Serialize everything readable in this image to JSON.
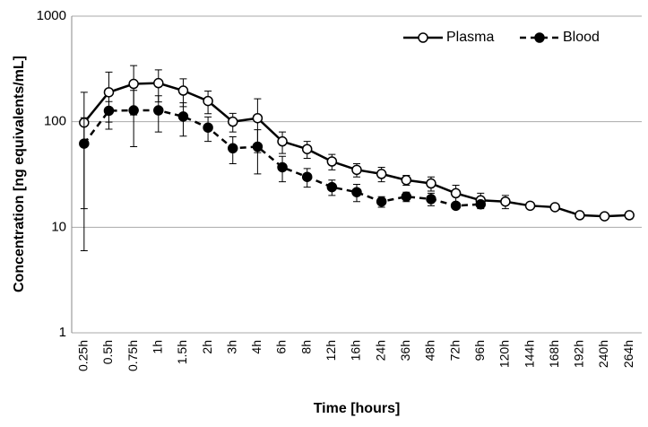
{
  "chart_data": {
    "type": "line",
    "x_label": "Time [hours]",
    "y_label": "Concentration [ng equivalents/mL]",
    "categories": [
      "0.25h",
      "0.5h",
      "0.75h",
      "1h",
      "1.5h",
      "2h",
      "3h",
      "4h",
      "6h",
      "8h",
      "12h",
      "16h",
      "24h",
      "36h",
      "48h",
      "72h",
      "96h",
      "120h",
      "144h",
      "168h",
      "192h",
      "240h",
      "264h"
    ],
    "series": [
      {
        "name": "Plasma",
        "color": "#000000",
        "marker": "open",
        "dash": false,
        "values": [
          98,
          190,
          228,
          232,
          197,
          157,
          100,
          108,
          65,
          55,
          42,
          35,
          32,
          28,
          26,
          21,
          18,
          17.5,
          16,
          15.5,
          13,
          12.7,
          13
        ],
        "errors": [
          92,
          105,
          112,
          78,
          58,
          38,
          20,
          57,
          15,
          10,
          7,
          5,
          5,
          3,
          4,
          4,
          3,
          2.5,
          1,
          1,
          0.5,
          0.5,
          1
        ]
      },
      {
        "name": "Blood",
        "color": "#000000",
        "marker": "filled",
        "dash": true,
        "values": [
          62,
          127,
          128,
          128,
          112,
          88,
          56,
          58,
          37,
          30,
          24,
          21.5,
          17.5,
          19.5,
          18.5,
          16,
          16.5,
          null,
          null,
          null,
          null,
          null,
          null
        ],
        "errors": [
          47,
          28,
          70,
          48,
          39,
          23,
          16,
          26,
          10,
          6,
          4,
          4,
          2,
          2,
          2.5,
          1,
          1,
          null,
          null,
          null,
          null,
          null,
          null
        ]
      }
    ],
    "log_y": true,
    "ylim": [
      1,
      1000
    ],
    "yticks": [
      1,
      10,
      100,
      1000
    ],
    "grid": true,
    "legend": "top-right"
  }
}
